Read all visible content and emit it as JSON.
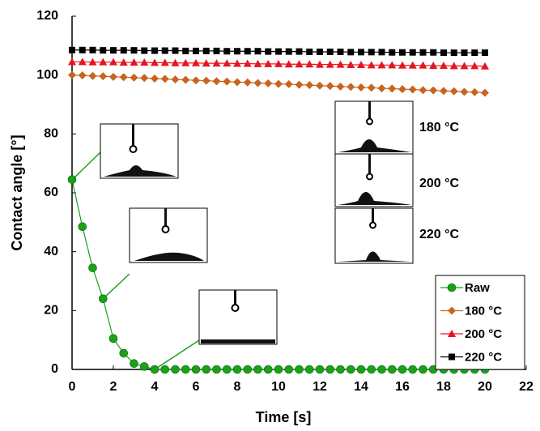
{
  "chart_data": {
    "type": "line",
    "x_label": "Time [s]",
    "y_label": "Contact angle [°]",
    "x": [
      0,
      0.5,
      1,
      1.5,
      2,
      2.5,
      3,
      3.5,
      4,
      4.5,
      5,
      5.5,
      6,
      6.5,
      7,
      7.5,
      8,
      8.5,
      9,
      9.5,
      10,
      10.5,
      11,
      11.5,
      12,
      12.5,
      13,
      13.5,
      14,
      14.5,
      15,
      15.5,
      16,
      16.5,
      17,
      17.5,
      18,
      18.5,
      19,
      19.5,
      20
    ],
    "series": [
      {
        "name": "Raw",
        "color": "#1aa01a",
        "marker": "circle",
        "values": [
          64.5,
          48.5,
          34.5,
          24,
          10.5,
          5.5,
          2,
          1,
          0,
          0,
          0,
          0,
          0,
          0,
          0,
          0,
          0,
          0,
          0,
          0,
          0,
          0,
          0,
          0,
          0,
          0,
          0,
          0,
          0,
          0,
          0,
          0,
          0,
          0,
          0,
          0,
          0,
          0,
          0,
          0,
          0
        ]
      },
      {
        "name": "180 °C",
        "color": "#c8641e",
        "marker": "diamond",
        "values": [
          100.0,
          99.9,
          99.7,
          99.6,
          99.4,
          99.3,
          99.1,
          99.0,
          98.8,
          98.7,
          98.5,
          98.4,
          98.2,
          98.1,
          97.9,
          97.8,
          97.6,
          97.5,
          97.3,
          97.2,
          97.0,
          96.9,
          96.7,
          96.6,
          96.4,
          96.3,
          96.1,
          96.0,
          95.8,
          95.7,
          95.5,
          95.4,
          95.2,
          95.1,
          94.9,
          94.8,
          94.6,
          94.5,
          94.3,
          94.2,
          94.0
        ]
      },
      {
        "name": "200 °C",
        "color": "#e8141e",
        "marker": "triangle",
        "values": [
          104.5,
          104.5,
          104.4,
          104.4,
          104.4,
          104.3,
          104.3,
          104.3,
          104.2,
          104.2,
          104.1,
          104.1,
          104.1,
          104.0,
          104.0,
          104.0,
          103.9,
          103.9,
          103.8,
          103.8,
          103.8,
          103.7,
          103.7,
          103.7,
          103.6,
          103.6,
          103.6,
          103.5,
          103.5,
          103.4,
          103.4,
          103.4,
          103.3,
          103.3,
          103.3,
          103.2,
          103.2,
          103.1,
          103.1,
          103.1,
          103.0
        ]
      },
      {
        "name": "220 °C",
        "color": "#000000",
        "marker": "square",
        "values": [
          108.5,
          108.5,
          108.5,
          108.4,
          108.4,
          108.4,
          108.4,
          108.3,
          108.3,
          108.3,
          108.3,
          108.2,
          108.2,
          108.2,
          108.2,
          108.1,
          108.1,
          108.1,
          108.1,
          108.0,
          108.0,
          108.0,
          108.0,
          107.9,
          107.9,
          107.9,
          107.9,
          107.8,
          107.8,
          107.8,
          107.8,
          107.7,
          107.7,
          107.7,
          107.7,
          107.7,
          107.6,
          107.6,
          107.6,
          107.6,
          107.6
        ]
      }
    ],
    "xlim": [
      0,
      22
    ],
    "xticks": [
      0,
      2,
      4,
      6,
      8,
      10,
      12,
      14,
      16,
      18,
      20,
      22
    ],
    "ylim": [
      0,
      120
    ],
    "yticks": [
      0,
      20,
      40,
      60,
      80,
      100,
      120
    ],
    "legend": "lower right",
    "annotations": [
      "180 °C",
      "200 °C",
      "220 °C"
    ]
  }
}
